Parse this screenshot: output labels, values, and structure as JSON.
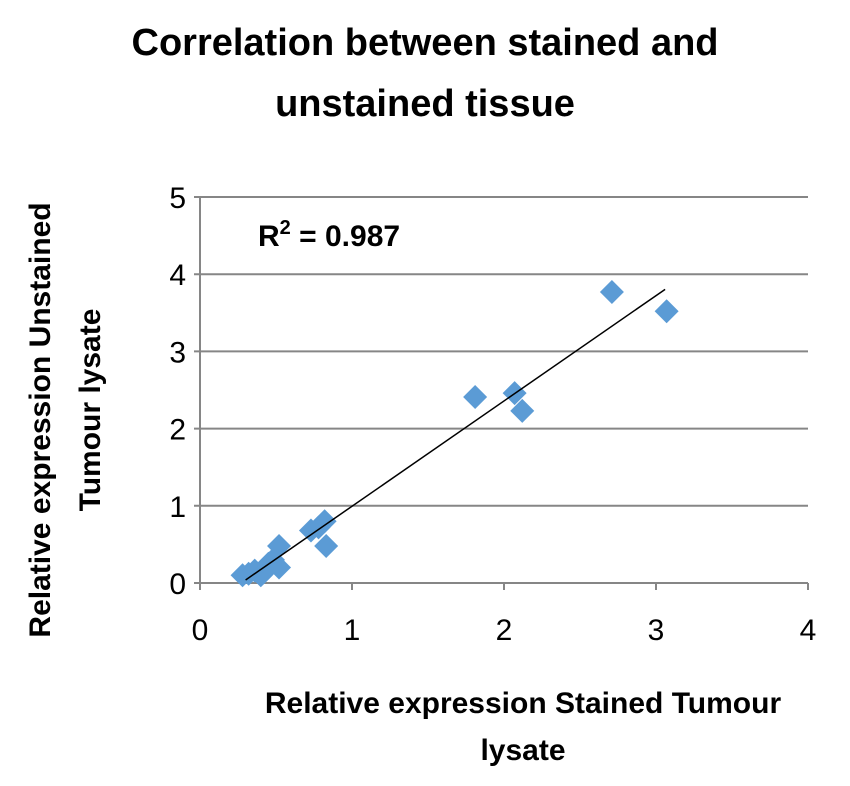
{
  "chart_data": {
    "type": "scatter",
    "title_lines": [
      "Correlation between stained and",
      "unstained tissue"
    ],
    "xlabel_lines": [
      "Relative expression Stained Tumour",
      "lysate"
    ],
    "ylabel_lines": [
      "Relative expression Unstained",
      "Tumour lysate"
    ],
    "xlim": [
      0,
      4
    ],
    "ylim": [
      0,
      5
    ],
    "xticks": [
      "0",
      "1",
      "2",
      "3",
      "4"
    ],
    "yticks": [
      "0",
      "1",
      "2",
      "3",
      "4",
      "5"
    ],
    "grid": "horizontal",
    "marker_color": "#5B9BD5",
    "points": [
      [
        0.28,
        0.1
      ],
      [
        0.32,
        0.12
      ],
      [
        0.36,
        0.16
      ],
      [
        0.4,
        0.1
      ],
      [
        0.42,
        0.14
      ],
      [
        0.45,
        0.25
      ],
      [
        0.48,
        0.3
      ],
      [
        0.52,
        0.48
      ],
      [
        0.52,
        0.2
      ],
      [
        0.73,
        0.68
      ],
      [
        0.78,
        0.72
      ],
      [
        0.82,
        0.8
      ],
      [
        0.83,
        0.48
      ],
      [
        1.81,
        2.41
      ],
      [
        2.07,
        2.46
      ],
      [
        2.12,
        2.23
      ],
      [
        2.71,
        3.77
      ],
      [
        3.07,
        3.52
      ]
    ],
    "trendline": {
      "x0": 0.3,
      "x1": 3.06,
      "slope": 1.364,
      "intercept": -0.37
    },
    "annotation": {
      "label": "R",
      "sup": "2",
      "text": " = 0.987"
    }
  }
}
